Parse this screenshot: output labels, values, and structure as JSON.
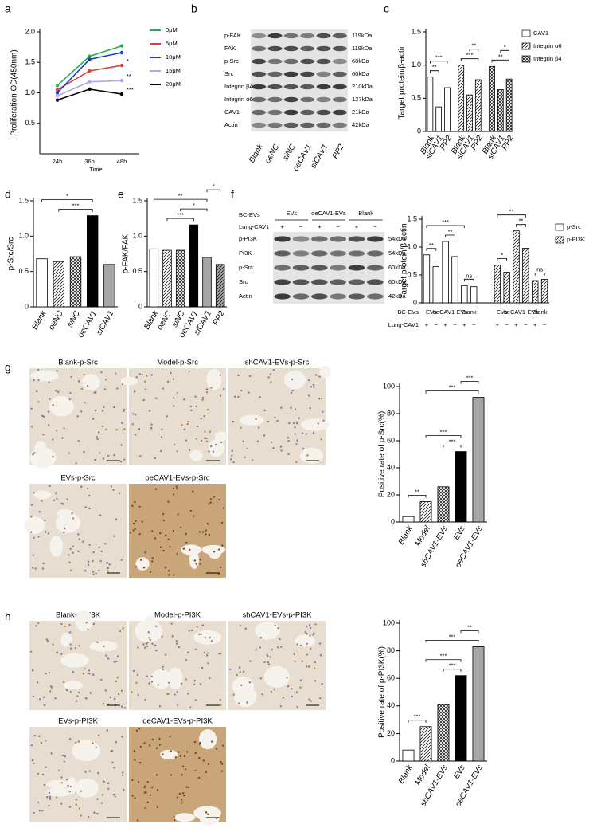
{
  "panel_labels": [
    "a",
    "b",
    "c",
    "d",
    "e",
    "f",
    "g",
    "h"
  ],
  "chart_data": [
    {
      "type": "line",
      "y_label": "Proliferation OD(450nm)",
      "x_label": "Time",
      "categories": [
        "24h",
        "36h",
        "48h"
      ],
      "series": [
        {
          "name": "0μM",
          "color": "#22b14c",
          "values": [
            1.12,
            1.6,
            1.77
          ]
        },
        {
          "name": "5μM",
          "color": "#e03c3c",
          "values": [
            1.05,
            1.36,
            1.45
          ]
        },
        {
          "name": "10μM",
          "color": "#1d3fbf",
          "values": [
            1.0,
            1.55,
            1.66
          ]
        },
        {
          "name": "15μM",
          "color": "#b3a6e6",
          "values": [
            0.95,
            1.18,
            1.2
          ]
        },
        {
          "name": "20μM",
          "color": "#000000",
          "values": [
            0.88,
            1.06,
            0.98
          ]
        }
      ],
      "ylim": [
        0,
        2.0
      ],
      "yticks": [
        0.5,
        {
          "value": 1,
          "label": "1.0"
        },
        1.5,
        {
          "value": 2,
          "label": "2.0"
        }
      ],
      "annotations": [
        "*",
        "**",
        "***"
      ]
    },
    {
      "type": "bar",
      "y_label": "Target protein/β-actin",
      "categories": [
        "Blank",
        "siCAV1",
        "PP2"
      ],
      "series": [
        {
          "name": "CAV1",
          "color": "#ffffff",
          "values": [
            0.82,
            0.37,
            0.66
          ]
        },
        {
          "name": "Integrin α6",
          "color": "#ffffff",
          "values": [
            1.0,
            0.55,
            0.78
          ]
        },
        {
          "name": "Integrin β4",
          "color": "#ffffff",
          "values": [
            0.98,
            0.63,
            0.79
          ]
        }
      ],
      "ylim": [
        0,
        1.5
      ],
      "yticks": [
        0,
        0.5,
        {
          "value": 1,
          "label": "1.0"
        },
        1.5
      ],
      "annotations": [
        "**",
        "***",
        "***",
        "**",
        "**",
        "*"
      ]
    },
    {
      "type": "bar",
      "y_label": "p-Src/Src",
      "categories": [
        "Blank",
        "oeNC",
        "siNC",
        "oeCAV1",
        "siCAV1"
      ],
      "values": [
        0.68,
        0.64,
        0.71,
        1.29,
        0.6
      ],
      "colors": [
        "#ffffff",
        "#ffffff",
        "#ffffff",
        "#000000",
        "#a6a6a6"
      ],
      "ylim": [
        0,
        1.5
      ],
      "yticks": [
        0,
        0.5,
        {
          "value": 1,
          "label": "1.0"
        },
        1.5
      ],
      "annotations": [
        "***",
        "*"
      ]
    },
    {
      "type": "bar",
      "y_label": "p-FAK/FAK",
      "categories": [
        "Blank",
        "oeNC",
        "siNC",
        "oeCAV1",
        "siCAV1",
        "PP2"
      ],
      "values": [
        0.82,
        0.8,
        0.8,
        1.16,
        0.7,
        0.6
      ],
      "colors": [
        "#ffffff",
        "#ffffff",
        "#ffffff",
        "#000000",
        "#a6a6a6",
        "#a6a6a6"
      ],
      "ylim": [
        0,
        1.5
      ],
      "yticks": [
        0,
        0.5,
        {
          "value": 1,
          "label": "1.0"
        },
        1.5
      ],
      "annotations": [
        "***",
        "*",
        "**",
        "*"
      ]
    },
    {
      "type": "bar",
      "y_label": "Target protein/β-actin",
      "row_labels": [
        "BC-EVs",
        "Lung-CAV1"
      ],
      "group_labels": [
        "EVs",
        "oeCAV1-EVs",
        "Blank"
      ],
      "lung_signs": [
        "+",
        "−",
        "+",
        "−",
        "+",
        "−"
      ],
      "series": [
        {
          "name": "p-Src",
          "color": "#ffffff",
          "values": [
            0.86,
            0.65,
            1.1,
            0.83,
            0.31,
            0.29
          ]
        },
        {
          "name": "p-PI3K",
          "color": "#ffffff",
          "values": [
            0.68,
            0.55,
            1.29,
            0.98,
            0.4,
            0.42
          ]
        }
      ],
      "ylim": [
        0,
        1.5
      ],
      "yticks": [
        0,
        0.5,
        {
          "value": 1,
          "label": "1.0"
        },
        1.5
      ],
      "annotations": [
        "**",
        "**",
        "ns",
        "***",
        "*",
        "**",
        "ns",
        "**"
      ]
    },
    {
      "type": "bar",
      "y_label": "Positive rate of p-Src(%)",
      "categories": [
        "Blank",
        "Model",
        "shCAV1-EVs",
        "EVs",
        "oeCAV1-EVs"
      ],
      "values": [
        4,
        15,
        26,
        52,
        92
      ],
      "colors": [
        "#ffffff",
        "#ffffff",
        "#ffffff",
        "#000000",
        "#a6a6a6"
      ],
      "ylim": [
        0,
        100
      ],
      "yticks": [
        0,
        20,
        40,
        60,
        80,
        100
      ],
      "annotations": [
        "**",
        "***",
        "***",
        "***",
        "***"
      ]
    },
    {
      "type": "bar",
      "y_label": "Positive rate of p-PI3K(%)",
      "categories": [
        "Blank",
        "Model",
        "shCAV1-EVs",
        "EVs",
        "oeCAV1-EVs"
      ],
      "values": [
        8,
        25,
        41,
        62,
        83
      ],
      "colors": [
        "#ffffff",
        "#ffffff",
        "#ffffff",
        "#000000",
        "#a6a6a6"
      ],
      "ylim": [
        0,
        100
      ],
      "yticks": [
        0,
        20,
        40,
        60,
        80,
        100
      ],
      "annotations": [
        "***",
        "***",
        "***",
        "***",
        "**"
      ]
    }
  ],
  "blots": {
    "b": {
      "lanes": [
        "Blank",
        "oeNC",
        "siNC",
        "oeCAV1",
        "siCAV1",
        "PP2"
      ],
      "rows": [
        {
          "label": "p-FAK",
          "size": "119kDa"
        },
        {
          "label": "FAK",
          "size": "119kDa"
        },
        {
          "label": "p-Src",
          "size": "60kDa"
        },
        {
          "label": "Src",
          "size": "60kDa"
        },
        {
          "label": "Integrin β4",
          "size": "210kDa"
        },
        {
          "label": "Integrin α6",
          "size": "127kDa"
        },
        {
          "label": "CAV1",
          "size": "21kDa"
        },
        {
          "label": "Actin",
          "size": "42kDa"
        }
      ]
    },
    "f": {
      "header": "BC-EVs",
      "groups": [
        "EVs",
        "oeCAV1-EVs",
        "Blank"
      ],
      "treatment": "Lung-CAV1",
      "signs": [
        "+",
        "−",
        "+",
        "−",
        "+",
        "−"
      ],
      "rows": [
        {
          "label": "p-PI3K",
          "size": "54kDa"
        },
        {
          "label": "PI3K",
          "size": "54kDa"
        },
        {
          "label": "p-Src",
          "size": "60kDa"
        },
        {
          "label": "Src",
          "size": "60kDa"
        },
        {
          "label": "Actin",
          "size": "42kDa"
        }
      ]
    }
  },
  "ihc": {
    "g": [
      "Blank-p-Src",
      "Model-p-Src",
      "shCAV1-EVs-p-Src",
      "EVs-p-Src",
      "oeCAV1-EVs-p-Src"
    ],
    "h": [
      "Blank-p-PI3K",
      "Model-p-PI3K",
      "shCAV1-EVs-p-PI3K",
      "EVs-p-PI3K",
      "oeCAV1-EVs-p-PI3K"
    ]
  }
}
